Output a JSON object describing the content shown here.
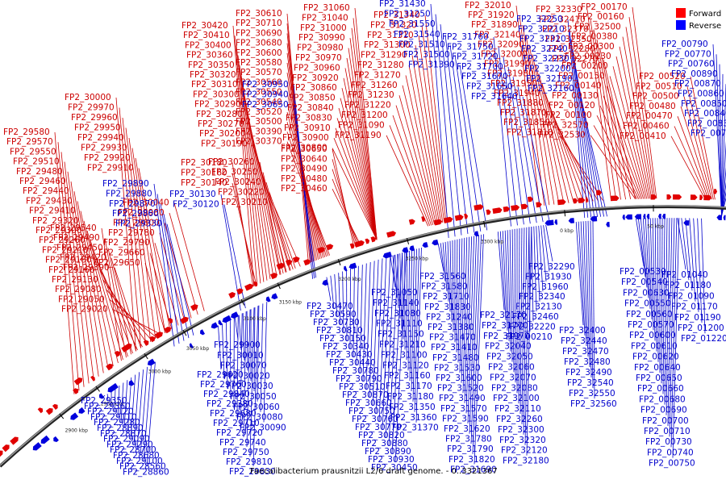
{
  "caption": "Faecalibacterium prausnitzii L2/6 draft genome. - 0..3321367",
  "legend": [
    {
      "label": "Forward",
      "color": "#ff0000"
    },
    {
      "label": "Reverse",
      "color": "#0000ff"
    }
  ],
  "colors": {
    "forward": "#e00000",
    "reverse": "#0000dd",
    "backbone": "#555555"
  },
  "scale_ticks": [
    "2900 kbp",
    "2950 kbp",
    "3000 kbp",
    "3050 kbp",
    "3100 kbp",
    "3150 kbp",
    "3200 kbp",
    "3250 kbp",
    "3300 kbp",
    "0 kbp",
    "50 kbp"
  ],
  "forward_labels": [
    "FP2_29580",
    "FP2_29570",
    "FP2_29550",
    "FP2_29510",
    "FP2_29480",
    "FP2_29460",
    "FP2_29440",
    "FP2_29430",
    "FP2_29410",
    "FP2_29320",
    "FP2_29300",
    "FP2_29260",
    "FP2_29210",
    "FP2_29180",
    "FP2_29160",
    "FP2_29130",
    "FP2_29080",
    "FP2_29050",
    "FP2_29020",
    "FP2_29540",
    "FP2_29490",
    "FP2_29450",
    "FP2_29420",
    "FP2_29390",
    "FP2_30000",
    "FP2_29970",
    "FP2_29960",
    "FP2_29950",
    "FP2_29940",
    "FP2_29930",
    "FP2_29920",
    "FP2_29910",
    "FP2_30180",
    "FP2_30160",
    "FP2_30140",
    "FP2_29650",
    "FP2_29660",
    "FP2_29790",
    "FP2_29780",
    "FP2_29800",
    "FP2_29980",
    "FP2_30040",
    "FP2_30420",
    "FP2_30410",
    "FP2_30400",
    "FP2_30360",
    "FP2_30350",
    "FP2_30320",
    "FP2_30310",
    "FP2_30300",
    "FP2_30290",
    "FP2_30280",
    "FP2_30270",
    "FP2_30200",
    "FP2_30190",
    "FP2_30610",
    "FP2_30710",
    "FP2_30690",
    "FP2_30680",
    "FP2_30600",
    "FP2_30580",
    "FP2_30570",
    "FP2_30560",
    "FP2_30550",
    "FP2_30540",
    "FP2_30520",
    "FP2_30500",
    "FP2_30390",
    "FP2_30370",
    "FP2_30260",
    "FP2_30250",
    "FP2_30240",
    "FP2_30220",
    "FP2_30210",
    "FP2_30650",
    "FP2_30640",
    "FP2_30490",
    "FP2_30480",
    "FP2_30460",
    "FP2_31060",
    "FP2_31040",
    "FP2_31000",
    "FP2_30990",
    "FP2_30980",
    "FP2_30970",
    "FP2_30960",
    "FP2_30920",
    "FP2_30860",
    "FP2_30850",
    "FP2_30840",
    "FP2_30830",
    "FP2_30910",
    "FP2_30900",
    "FP2_30800",
    "FP2_31340",
    "FP2_31320",
    "FP2_31310",
    "FP2_31300",
    "FP2_31290",
    "FP2_31280",
    "FP2_31270",
    "FP2_31260",
    "FP2_31230",
    "FP2_31220",
    "FP2_31200",
    "FP2_31090",
    "FP2_31190",
    "FP2_32010",
    "FP2_31920",
    "FP2_31890",
    "FP2_32140",
    "FP2_32090",
    "FP2_32000",
    "FP2_31990",
    "FP2_31980",
    "FP2_31950",
    "FP2_31940",
    "FP2_31880",
    "FP2_31870",
    "FP2_31850",
    "FP2_31810",
    "FP2_32330",
    "FP2_32410",
    "FP2_32370",
    "FP2_32350",
    "FP2_32280",
    "FP2_32270",
    "FP2_00170",
    "FP2_00160",
    "FP2_32500",
    "FP2_00380",
    "FP2_00300",
    "FP2_00230",
    "FP2_00200",
    "FP2_00150",
    "FP2_00140",
    "FP2_00130",
    "FP2_00120",
    "FP2_00100",
    "FP2_32570",
    "FP2_32530",
    "FP2_00520",
    "FP2_00510",
    "FP2_00500",
    "FP2_00480",
    "FP2_00470",
    "FP2_00460",
    "FP2_00410"
  ],
  "reverse_labels": [
    "FP2_29890",
    "FP2_29880",
    "FP2_29870",
    "FP2_29860",
    "FP2_29330",
    "FP2_30130",
    "FP2_30120",
    "FP2_30950",
    "FP2_30940",
    "FP2_30650",
    "FP2_31430",
    "FP2_31250",
    "FP2_31550",
    "FP2_31540",
    "FP2_31510",
    "FP2_31500",
    "FP2_31390",
    "FP2_31760",
    "FP2_31750",
    "FP2_31720",
    "FP2_31700",
    "FP2_31670",
    "FP2_31650",
    "FP2_31640",
    "FP2_32250",
    "FP2_32210",
    "FP2_32310",
    "FP2_32240",
    "FP2_32230",
    "FP2_32200",
    "FP2_32190",
    "FP2_32160",
    "FP2_00790",
    "FP2_00770",
    "FP2_00760",
    "FP2_00890",
    "FP2_00870",
    "FP2_00860",
    "FP2_00850",
    "FP2_00840",
    "FP2_00830",
    "FP2_00780",
    "FP2_32290",
    "FP2_31930",
    "FP2_31960",
    "FP2_32340",
    "FP2_32130",
    "FP2_32460",
    "FP2_32220",
    "FP2_00210",
    "FP2_00530",
    "FP2_00540",
    "FP2_00630",
    "FP2_00550",
    "FP2_00560",
    "FP2_00570",
    "FP2_00600",
    "FP2_00610",
    "FP2_00620",
    "FP2_00640",
    "FP2_00650",
    "FP2_00660",
    "FP2_00680",
    "FP2_00690",
    "FP2_00700",
    "FP2_00710",
    "FP2_00730",
    "FP2_00740",
    "FP2_00750",
    "FP2_01040",
    "FP2_01180",
    "FP2_01090",
    "FP2_01170",
    "FP2_01190",
    "FP2_01200",
    "FP2_01220",
    "FP2_31560",
    "FP2_31580",
    "FP2_31710",
    "FP2_31830",
    "FP2_31240",
    "FP2_31380",
    "FP2_31470",
    "FP2_31410",
    "FP2_31480",
    "FP2_31530",
    "FP2_31600",
    "FP2_31520",
    "FP2_31490",
    "FP2_31570",
    "FP2_31590",
    "FP2_31620",
    "FP2_31780",
    "FP2_31790",
    "FP2_31820",
    "FP2_31690",
    "FP2_31050",
    "FP2_31140",
    "FP2_31080",
    "FP2_31110",
    "FP2_31150",
    "FP2_31210",
    "FP2_31100",
    "FP2_31120",
    "FP2_31160",
    "FP2_31170",
    "FP2_31180",
    "FP2_31350",
    "FP2_31360",
    "FP2_31370",
    "FP2_32170",
    "FP2_31770",
    "FP2_31970",
    "FP2_32040",
    "FP2_32050",
    "FP2_32060",
    "FP2_32070",
    "FP2_32080",
    "FP2_32100",
    "FP2_32110",
    "FP2_32260",
    "FP2_32300",
    "FP2_32320",
    "FP2_32120",
    "FP2_32180",
    "FP2_32400",
    "FP2_32440",
    "FP2_32470",
    "FP2_32480",
    "FP2_32490",
    "FP2_32540",
    "FP2_32550",
    "FP2_32560",
    "FP2_30470",
    "FP2_30590",
    "FP2_30730",
    "FP2_30810",
    "FP2_30150",
    "FP2_30340",
    "FP2_30430",
    "FP2_30440",
    "FP2_30780",
    "FP2_30790",
    "FP2_30510",
    "FP2_30870",
    "FP2_30660",
    "FP2_30750",
    "FP2_30760",
    "FP2_30770",
    "FP2_30820",
    "FP2_30880",
    "FP2_30890",
    "FP2_30930",
    "FP2_30450",
    "FP2_29900",
    "FP2_30010",
    "FP2_30070",
    "FP2_30020",
    "FP2_30030",
    "FP2_30050",
    "FP2_30060",
    "FP2_30080",
    "FP2_30090",
    "FP2_29620",
    "FP2_29760",
    "FP2_29840",
    "FP2_29380",
    "FP2_29680",
    "FP2_29710",
    "FP2_29720",
    "FP2_29740",
    "FP2_29750",
    "FP2_29810",
    "FP2_29830",
    "FP2_29850",
    "FP2_29350",
    "FP2_29360",
    "FP2_29120",
    "FP2_29110",
    "FP2_29280",
    "FP2_28890",
    "FP2_28870",
    "FP2_29090",
    "FP2_29290",
    "FP2_28700",
    "FP2_28680",
    "FP2_29100",
    "FP2_28560",
    "FP2_28860"
  ]
}
